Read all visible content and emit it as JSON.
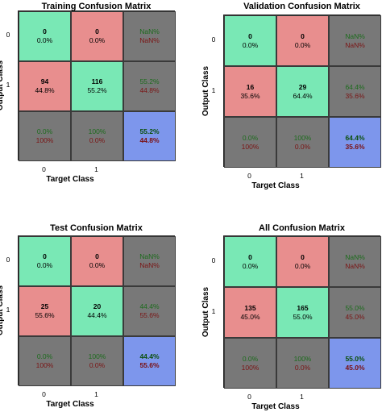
{
  "chart_data": [
    {
      "type": "table",
      "title": "Training Confusion Matrix",
      "xlabel": "Target Class",
      "ylabel": "Output Class",
      "x_ticks": [
        "0",
        "1"
      ],
      "y_ticks": [
        "0",
        "1"
      ],
      "cells": [
        [
          {
            "count": "0",
            "pct": "0.0%"
          },
          {
            "count": "0",
            "pct": "0.0%"
          },
          {
            "top": "NaN%",
            "bottom": "NaN%"
          }
        ],
        [
          {
            "count": "94",
            "pct": "44.8%"
          },
          {
            "count": "116",
            "pct": "55.2%"
          },
          {
            "top": "55.2%",
            "bottom": "44.8%"
          }
        ],
        [
          {
            "top": "0.0%",
            "bottom": "100%"
          },
          {
            "top": "100%",
            "bottom": "0.0%"
          },
          {
            "top": "55.2%",
            "bottom": "44.8%"
          }
        ]
      ]
    },
    {
      "type": "table",
      "title": "Validation Confusion Matrix",
      "xlabel": "Target Class",
      "ylabel": "Output Class",
      "x_ticks": [
        "0",
        "1"
      ],
      "y_ticks": [
        "0",
        "1"
      ],
      "cells": [
        [
          {
            "count": "0",
            "pct": "0.0%"
          },
          {
            "count": "0",
            "pct": "0.0%"
          },
          {
            "top": "NaN%",
            "bottom": "NaN%"
          }
        ],
        [
          {
            "count": "16",
            "pct": "35.6%"
          },
          {
            "count": "29",
            "pct": "64.4%"
          },
          {
            "top": "64.4%",
            "bottom": "35.6%"
          }
        ],
        [
          {
            "top": "0.0%",
            "bottom": "100%"
          },
          {
            "top": "100%",
            "bottom": "0.0%"
          },
          {
            "top": "64.4%",
            "bottom": "35.6%"
          }
        ]
      ]
    },
    {
      "type": "table",
      "title": "Test Confusion Matrix",
      "xlabel": "Target Class",
      "ylabel": "Output Class",
      "x_ticks": [
        "0",
        "1"
      ],
      "y_ticks": [
        "0",
        "1"
      ],
      "cells": [
        [
          {
            "count": "0",
            "pct": "0.0%"
          },
          {
            "count": "0",
            "pct": "0.0%"
          },
          {
            "top": "NaN%",
            "bottom": "NaN%"
          }
        ],
        [
          {
            "count": "25",
            "pct": "55.6%"
          },
          {
            "count": "20",
            "pct": "44.4%"
          },
          {
            "top": "44.4%",
            "bottom": "55.6%"
          }
        ],
        [
          {
            "top": "0.0%",
            "bottom": "100%"
          },
          {
            "top": "100%",
            "bottom": "0.0%"
          },
          {
            "top": "44.4%",
            "bottom": "55.6%"
          }
        ]
      ]
    },
    {
      "type": "table",
      "title": "All Confusion Matrix",
      "xlabel": "Target Class",
      "ylabel": "Output Class",
      "x_ticks": [
        "0",
        "1"
      ],
      "y_ticks": [
        "0",
        "1"
      ],
      "cells": [
        [
          {
            "count": "0",
            "pct": "0.0%"
          },
          {
            "count": "0",
            "pct": "0.0%"
          },
          {
            "top": "NaN%",
            "bottom": "NaN%"
          }
        ],
        [
          {
            "count": "135",
            "pct": "45.0%"
          },
          {
            "count": "165",
            "pct": "55.0%"
          },
          {
            "top": "55.0%",
            "bottom": "45.0%"
          }
        ],
        [
          {
            "top": "0.0%",
            "bottom": "100%"
          },
          {
            "top": "100%",
            "bottom": "0.0%"
          },
          {
            "top": "55.0%",
            "bottom": "45.0%"
          }
        ]
      ]
    }
  ],
  "colors": {
    "correct": "#79e8b5",
    "incorrect": "#e88e8e",
    "summary": "#787878",
    "overall": "#7d96ec"
  }
}
